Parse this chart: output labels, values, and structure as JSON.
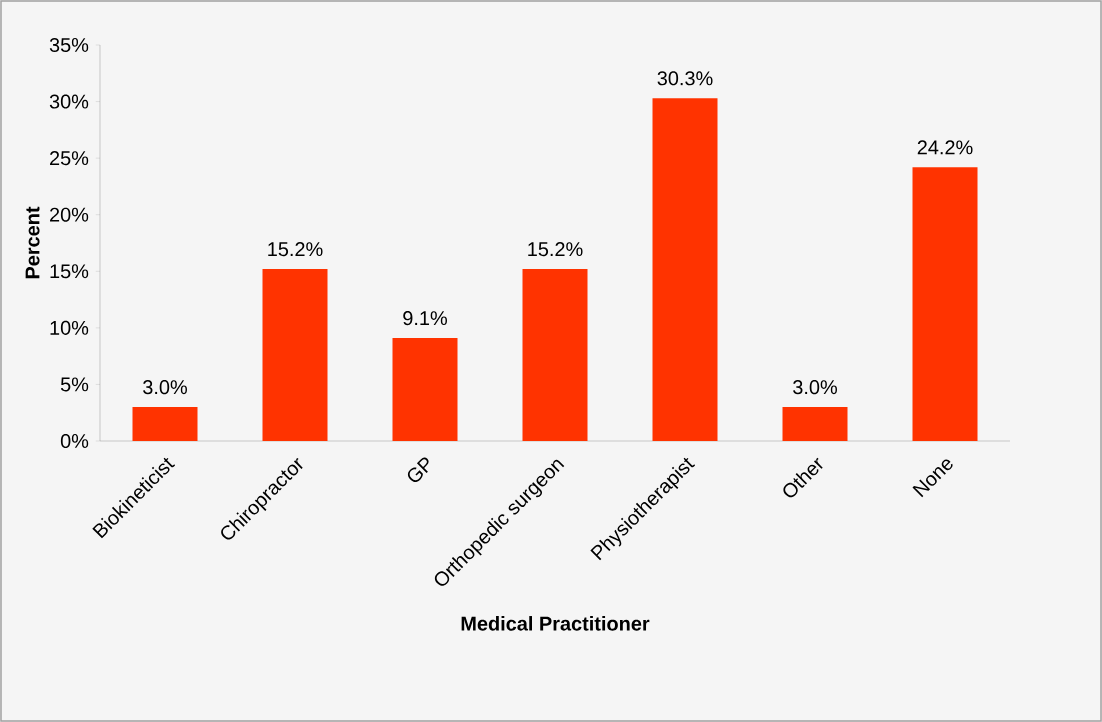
{
  "chart_data": {
    "type": "bar",
    "xlabel": "Medical Practitioner",
    "ylabel": "Percent",
    "categories": [
      "Biokineticist",
      "Chiropractor",
      "GP",
      "Orthopedic surgeon",
      "Physiotherapist",
      "Other",
      "None"
    ],
    "values": [
      3.0,
      15.2,
      9.1,
      15.2,
      30.3,
      3.0,
      24.2
    ],
    "value_labels": [
      "3.0%",
      "15.2%",
      "9.1%",
      "15.2%",
      "30.3%",
      "3.0%",
      "24.2%"
    ],
    "color": "#ff3300",
    "ylim": [
      0,
      35
    ],
    "yticks": [
      {
        "value": 0,
        "label": "0%"
      },
      {
        "value": 5,
        "label": "5%"
      },
      {
        "value": 10,
        "label": "10%"
      },
      {
        "value": 15,
        "label": "15%"
      },
      {
        "value": 20,
        "label": "20%"
      },
      {
        "value": 25,
        "label": "25%"
      },
      {
        "value": 30,
        "label": "30%"
      },
      {
        "value": 35,
        "label": "35%"
      }
    ],
    "grid": false
  }
}
